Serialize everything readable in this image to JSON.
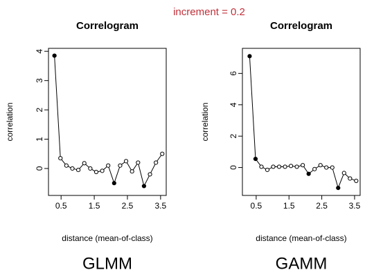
{
  "annotation": "increment = 0.2",
  "chart_data": [
    {
      "type": "line",
      "title": "Correlogram",
      "x_label": "distance (mean-of-class)",
      "y_label": "correlation",
      "caption": "GLMM",
      "x": [
        0.3,
        0.48,
        0.66,
        0.84,
        1.02,
        1.2,
        1.38,
        1.56,
        1.74,
        1.92,
        2.1,
        2.28,
        2.46,
        2.64,
        2.82,
        3.0,
        3.18,
        3.36,
        3.55
      ],
      "series": [
        {
          "color": "#000000",
          "values": [
            3.85,
            0.35,
            0.1,
            0.0,
            -0.05,
            0.18,
            0.0,
            -0.12,
            -0.08,
            0.1,
            -0.5,
            0.1,
            0.25,
            -0.1,
            0.2,
            -0.6,
            -0.2,
            0.2,
            0.5
          ],
          "filled": [
            true,
            false,
            false,
            false,
            false,
            false,
            false,
            false,
            false,
            false,
            true,
            false,
            false,
            false,
            false,
            true,
            false,
            false,
            false
          ]
        }
      ],
      "xlim": [
        0.12,
        3.67
      ],
      "ylim": [
        -0.92,
        4.1
      ],
      "xticks": [
        0.5,
        1.5,
        2.5,
        3.5
      ],
      "yticks": [
        0,
        1,
        2,
        3,
        4
      ]
    },
    {
      "type": "line",
      "title": "Correlogram",
      "x_label": "distance (mean-of-class)",
      "y_label": "correlation",
      "caption": "GAMM",
      "x": [
        0.3,
        0.48,
        0.66,
        0.84,
        1.02,
        1.2,
        1.38,
        1.56,
        1.74,
        1.92,
        2.1,
        2.28,
        2.46,
        2.64,
        2.82,
        3.0,
        3.18,
        3.36,
        3.55
      ],
      "series": [
        {
          "color": "#000000",
          "values": [
            7.1,
            0.55,
            0.05,
            -0.15,
            0.05,
            0.05,
            0.05,
            0.1,
            0.05,
            0.15,
            -0.4,
            -0.1,
            0.15,
            0.0,
            0.0,
            -1.3,
            -0.35,
            -0.7,
            -0.85
          ],
          "filled": [
            true,
            true,
            false,
            false,
            false,
            false,
            false,
            false,
            false,
            false,
            true,
            false,
            false,
            false,
            false,
            true,
            false,
            false,
            false
          ]
        }
      ],
      "xlim": [
        0.08,
        3.67
      ],
      "ylim": [
        -1.78,
        7.6
      ],
      "xticks": [
        0.5,
        1.5,
        2.5,
        3.5
      ],
      "yticks": [
        0,
        2,
        4,
        6
      ]
    }
  ]
}
